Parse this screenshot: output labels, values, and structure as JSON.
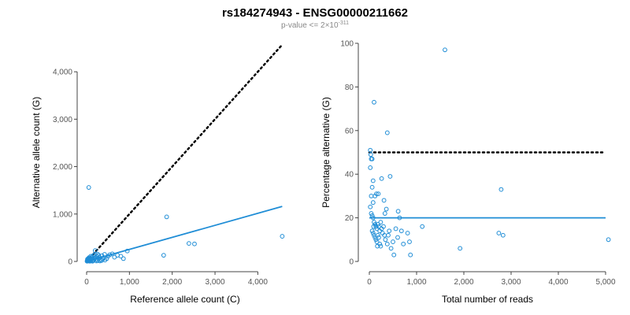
{
  "title": "rs184274943 - ENSG00000211662",
  "subtitle_prefix": "p-value <= 2×10",
  "subtitle_exponent": "-311",
  "colors": {
    "points": "#1f8dd6",
    "fit": "#1f8dd6",
    "reference": "#000000"
  },
  "chart_data": [
    {
      "type": "scatter",
      "xlabel": "Reference allele count (C)",
      "ylabel": "Alternative allele count (G)",
      "xlim": [
        0,
        4600
      ],
      "ylim": [
        0,
        4600
      ],
      "xticks": [
        0,
        1000,
        2000,
        3000,
        4000
      ],
      "xtick_labels": [
        "0",
        "1,000",
        "2,000",
        "3,000",
        "4,000"
      ],
      "yticks": [
        0,
        1000,
        2000,
        3000,
        4000
      ],
      "ytick_labels": [
        "0",
        "1,000",
        "2,000",
        "3,000",
        "4,000"
      ],
      "reference_line": {
        "style": "dotted",
        "x": [
          0,
          4570
        ],
        "y": [
          0,
          4570
        ]
      },
      "fit_line": {
        "style": "solid",
        "x": [
          0,
          4570
        ],
        "y": [
          0,
          1160
        ]
      },
      "points": [
        [
          50,
          1560
        ],
        [
          4570,
          530
        ],
        [
          1870,
          940
        ],
        [
          2390,
          380
        ],
        [
          2520,
          370
        ],
        [
          1800,
          130
        ],
        [
          950,
          220
        ],
        [
          860,
          60
        ],
        [
          800,
          110
        ],
        [
          720,
          130
        ],
        [
          650,
          90
        ],
        [
          600,
          160
        ],
        [
          540,
          140
        ],
        [
          500,
          110
        ],
        [
          470,
          60
        ],
        [
          430,
          30
        ],
        [
          400,
          80
        ],
        [
          360,
          120
        ],
        [
          330,
          40
        ],
        [
          300,
          90
        ],
        [
          280,
          60
        ],
        [
          260,
          150
        ],
        [
          240,
          110
        ],
        [
          220,
          40
        ],
        [
          200,
          230
        ],
        [
          180,
          70
        ],
        [
          160,
          30
        ],
        [
          150,
          120
        ],
        [
          140,
          60
        ],
        [
          130,
          20
        ],
        [
          120,
          90
        ],
        [
          110,
          40
        ],
        [
          100,
          10
        ],
        [
          90,
          70
        ],
        [
          80,
          30
        ],
        [
          70,
          50
        ],
        [
          60,
          20
        ],
        [
          55,
          80
        ],
        [
          50,
          10
        ],
        [
          45,
          40
        ],
        [
          40,
          60
        ],
        [
          35,
          20
        ],
        [
          30,
          30
        ],
        [
          25,
          10
        ],
        [
          20,
          50
        ],
        [
          15,
          20
        ],
        [
          10,
          5
        ],
        [
          350,
          20
        ],
        [
          420,
          150
        ],
        [
          230,
          10
        ],
        [
          310,
          10
        ],
        [
          180,
          140
        ],
        [
          260,
          20
        ],
        [
          140,
          5
        ],
        [
          190,
          100
        ],
        [
          95,
          110
        ],
        [
          75,
          5
        ],
        [
          380,
          50
        ],
        [
          280,
          130
        ]
      ]
    },
    {
      "type": "scatter",
      "xlabel": "Total number of reads",
      "ylabel": "Percentage alternative (G)",
      "xlim": [
        0,
        5000
      ],
      "ylim": [
        0,
        100
      ],
      "xticks": [
        0,
        1000,
        2000,
        3000,
        4000,
        5000
      ],
      "xtick_labels": [
        "0",
        "1,000",
        "2,000",
        "3,000",
        "4,000",
        "5,000"
      ],
      "yticks": [
        0,
        20,
        40,
        60,
        80,
        100
      ],
      "ytick_labels": [
        "0",
        "20",
        "40",
        "60",
        "80",
        "100"
      ],
      "reference_line": {
        "style": "dotted",
        "x": [
          0,
          5000
        ],
        "y": [
          50,
          50
        ]
      },
      "fit_line": {
        "style": "solid",
        "x": [
          0,
          5000
        ],
        "y": [
          20,
          20
        ]
      },
      "points": [
        [
          1600,
          97
        ],
        [
          100,
          73
        ],
        [
          380,
          59
        ],
        [
          20,
          51
        ],
        [
          30,
          49
        ],
        [
          40,
          47
        ],
        [
          60,
          47
        ],
        [
          20,
          43
        ],
        [
          260,
          38
        ],
        [
          80,
          37
        ],
        [
          440,
          39
        ],
        [
          150,
          31
        ],
        [
          190,
          31
        ],
        [
          60,
          34
        ],
        [
          120,
          30
        ],
        [
          40,
          30
        ],
        [
          80,
          27
        ],
        [
          310,
          28
        ],
        [
          360,
          24
        ],
        [
          330,
          22
        ],
        [
          610,
          23
        ],
        [
          640,
          20
        ],
        [
          20,
          25
        ],
        [
          40,
          22
        ],
        [
          60,
          21
        ],
        [
          80,
          20
        ],
        [
          100,
          18
        ],
        [
          120,
          17
        ],
        [
          140,
          16
        ],
        [
          160,
          15
        ],
        [
          180,
          17
        ],
        [
          200,
          16
        ],
        [
          220,
          14
        ],
        [
          240,
          18
        ],
        [
          260,
          15
        ],
        [
          60,
          14
        ],
        [
          80,
          13
        ],
        [
          100,
          12
        ],
        [
          120,
          11
        ],
        [
          140,
          10
        ],
        [
          160,
          9
        ],
        [
          180,
          12
        ],
        [
          200,
          11
        ],
        [
          220,
          8
        ],
        [
          240,
          7
        ],
        [
          280,
          13
        ],
        [
          300,
          16
        ],
        [
          320,
          12
        ],
        [
          340,
          10
        ],
        [
          380,
          8
        ],
        [
          400,
          12
        ],
        [
          420,
          14
        ],
        [
          460,
          6
        ],
        [
          500,
          9
        ],
        [
          520,
          3
        ],
        [
          560,
          15
        ],
        [
          600,
          11
        ],
        [
          680,
          14
        ],
        [
          720,
          8
        ],
        [
          810,
          13
        ],
        [
          850,
          9
        ],
        [
          870,
          3
        ],
        [
          1120,
          16
        ],
        [
          1920,
          6
        ],
        [
          2740,
          13
        ],
        [
          2830,
          12
        ],
        [
          2790,
          33
        ],
        [
          5060,
          10
        ],
        [
          170,
          7
        ],
        [
          90,
          16
        ]
      ]
    }
  ]
}
